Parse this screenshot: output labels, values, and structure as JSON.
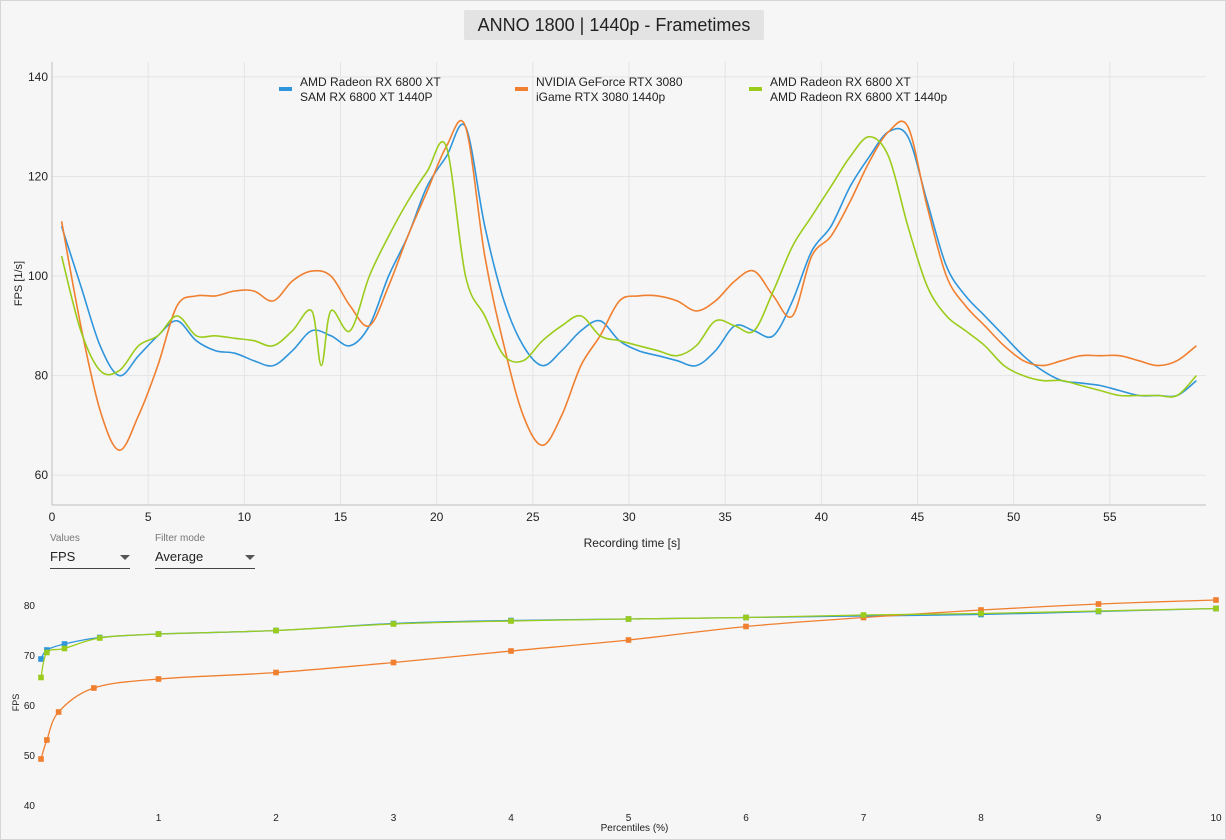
{
  "title": "ANNO 1800 | 1440p - Frametimes",
  "controls": {
    "values": {
      "label": "Values",
      "selected": "FPS"
    },
    "filter_mode": {
      "label": "Filter mode",
      "selected": "Average"
    }
  },
  "chart_data": [
    {
      "type": "line",
      "xlabel": "Recording time [s]",
      "ylabel": "FPS [1/s]",
      "xlim": [
        0,
        60
      ],
      "ylim": [
        54,
        143
      ],
      "xticks": [
        0,
        5,
        10,
        15,
        20,
        25,
        30,
        35,
        40,
        45,
        50,
        55
      ],
      "yticks": [
        60,
        80,
        100,
        120,
        140
      ],
      "grid": true,
      "legend_position": "top",
      "series": [
        {
          "name": "AMD Radeon RX 6800 XT",
          "subtitle": "SAM RX 6800 XT 1440P",
          "color": "#2f95dc",
          "x": [
            0.5,
            1.5,
            2.5,
            3.5,
            4.5,
            5.5,
            6.5,
            7.5,
            8.5,
            9.5,
            10.5,
            11.5,
            12.5,
            13.5,
            14.5,
            15.5,
            16.5,
            17.5,
            18.5,
            19.5,
            20.5,
            21.5,
            22.5,
            23.5,
            24.5,
            25.5,
            26.5,
            27.5,
            28.5,
            29.5,
            30.5,
            31.5,
            32.5,
            33.5,
            34.5,
            35.5,
            36.5,
            37.5,
            38.5,
            39.5,
            40.5,
            41.5,
            42.5,
            43.5,
            44.5,
            45.5,
            46.5,
            47.5,
            48.5,
            49.5,
            50.5,
            51.5,
            52.5,
            53.5,
            54.5,
            55.5,
            56.5,
            57.5,
            58.5,
            59.5
          ],
          "y": [
            110,
            98,
            86,
            80,
            84,
            88,
            91,
            87,
            85,
            84.5,
            83,
            82,
            85,
            89,
            88,
            86,
            90,
            100,
            108,
            118,
            124,
            130,
            110,
            95,
            86,
            82,
            85,
            89,
            91,
            87,
            85,
            84,
            83,
            82,
            85,
            90,
            89,
            88,
            95,
            105,
            110,
            118,
            124,
            129,
            128,
            115,
            102,
            96,
            92,
            88,
            84,
            81,
            79,
            78.5,
            78,
            77,
            76,
            76,
            76,
            79
          ]
        },
        {
          "name": "NVIDIA GeForce RTX 3080",
          "subtitle": "iGame RTX 3080 1440p",
          "color": "#f07f30",
          "x": [
            0.5,
            1.5,
            2.5,
            3.5,
            4.5,
            5.5,
            6.5,
            7.5,
            8.5,
            9.5,
            10.5,
            11.5,
            12.5,
            13.5,
            14.5,
            15.5,
            16.5,
            17.5,
            18.5,
            19.5,
            20.5,
            21.5,
            22.5,
            23.5,
            24.5,
            25.5,
            26.5,
            27.5,
            28.5,
            29.5,
            30.5,
            31.5,
            32.5,
            33.5,
            34.5,
            35.5,
            36.5,
            37.5,
            38.5,
            39.5,
            40.5,
            41.5,
            42.5,
            43.5,
            44.5,
            45.5,
            46.5,
            47.5,
            48.5,
            49.5,
            50.5,
            51.5,
            52.5,
            53.5,
            54.5,
            55.5,
            56.5,
            57.5,
            58.5,
            59.5
          ],
          "y": [
            111,
            90,
            73,
            65,
            72,
            82,
            94,
            96,
            96,
            97,
            97,
            95,
            99,
            101,
            100,
            94,
            90,
            98,
            108,
            117,
            126,
            130,
            104,
            86,
            72,
            66,
            72,
            82,
            88,
            95,
            96,
            96,
            95,
            93,
            95,
            99,
            101,
            96,
            92,
            104,
            108,
            115,
            123,
            129,
            130,
            114,
            100,
            94,
            90,
            86,
            83,
            82,
            83,
            84,
            84,
            84,
            83,
            82,
            83,
            86
          ]
        },
        {
          "name": "AMD Radeon RX 6800 XT",
          "subtitle": "AMD Radeon RX 6800 XT 1440p",
          "color": "#9bcc1c",
          "x": [
            0.5,
            1.5,
            2.5,
            3.5,
            4.5,
            5.5,
            6.5,
            7.5,
            8.5,
            9.5,
            10.5,
            11.5,
            12.5,
            13.5,
            14.0,
            14.5,
            15.5,
            16.5,
            17.5,
            18.5,
            19.5,
            20.5,
            21.5,
            22.5,
            23.5,
            24.5,
            25.5,
            26.5,
            27.5,
            28.5,
            29.5,
            30.5,
            31.5,
            32.5,
            33.5,
            34.5,
            35.5,
            36.5,
            37.5,
            38.5,
            39.5,
            40.5,
            41.5,
            42.5,
            43.5,
            44.5,
            45.5,
            46.5,
            47.5,
            48.5,
            49.5,
            50.5,
            51.5,
            52.5,
            53.5,
            54.5,
            55.5,
            56.5,
            57.5,
            58.5,
            59.5
          ],
          "y": [
            104,
            89,
            81,
            81,
            86,
            88,
            92,
            88,
            88,
            87.5,
            87,
            86,
            89,
            93,
            82,
            93,
            89,
            100,
            108,
            115,
            121,
            126,
            100,
            92,
            84,
            83,
            87,
            90,
            92,
            88,
            87,
            86,
            85,
            84,
            86,
            91,
            90,
            89,
            97,
            106,
            112,
            118,
            124,
            128,
            124,
            110,
            98,
            92,
            89,
            86,
            82,
            80,
            79,
            79,
            78,
            77,
            76,
            76,
            76,
            76,
            80
          ]
        }
      ]
    },
    {
      "type": "line",
      "xlabel": "Percentiles (%)",
      "ylabel": "FPS",
      "xlim": [
        -0.1,
        10
      ],
      "ylim": [
        40,
        81
      ],
      "xticks": [
        1,
        2,
        3,
        4,
        5,
        6,
        7,
        8,
        9,
        10
      ],
      "yticks": [
        40,
        50,
        60,
        70,
        80
      ],
      "grid": false,
      "series": [
        {
          "name": "SAM RX 6800 XT 1440P",
          "color": "#2f95dc",
          "x": [
            0,
            0.05,
            0.2,
            0.5,
            1,
            2,
            3,
            4,
            5,
            6,
            7,
            8,
            9,
            10
          ],
          "y": [
            69.2,
            71,
            72.2,
            73.5,
            74.2,
            74.9,
            76.3,
            76.9,
            77.2,
            77.5,
            77.8,
            78.1,
            78.7,
            79.3
          ]
        },
        {
          "name": "iGame RTX 3080 1440p",
          "color": "#f07f30",
          "x": [
            0,
            0.05,
            0.15,
            0.45,
            1,
            2,
            3,
            4,
            5,
            6,
            7,
            8,
            9,
            10
          ],
          "y": [
            49.2,
            53,
            58.6,
            63.4,
            65.2,
            66.5,
            68.5,
            70.8,
            73,
            75.7,
            77.5,
            79,
            80.2,
            81
          ]
        },
        {
          "name": "AMD Radeon RX 6800 XT 1440p",
          "color": "#9bcc1c",
          "x": [
            0,
            0.05,
            0.2,
            0.5,
            1,
            2,
            3,
            4,
            5,
            6,
            7,
            8,
            9,
            10
          ],
          "y": [
            65.5,
            70.5,
            71.3,
            73.4,
            74.2,
            74.9,
            76.2,
            76.8,
            77.2,
            77.5,
            78,
            78.3,
            78.8,
            79.3
          ]
        }
      ]
    }
  ]
}
